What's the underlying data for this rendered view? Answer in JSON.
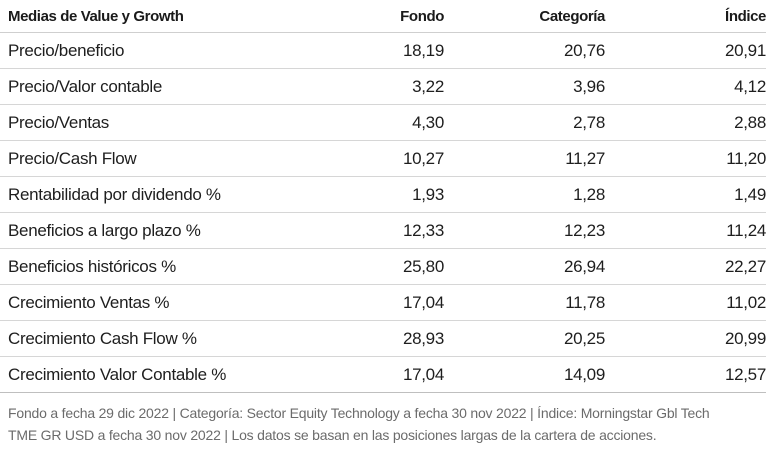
{
  "table": {
    "headers": {
      "label": "Medias de Value y Growth",
      "fondo": "Fondo",
      "categoria": "Categoría",
      "indice": "Índice"
    },
    "rows": [
      {
        "label": "Precio/beneficio",
        "fondo": "18,19",
        "categoria": "20,76",
        "indice": "20,91"
      },
      {
        "label": "Precio/Valor contable",
        "fondo": "3,22",
        "categoria": "3,96",
        "indice": "4,12"
      },
      {
        "label": "Precio/Ventas",
        "fondo": "4,30",
        "categoria": "2,78",
        "indice": "2,88"
      },
      {
        "label": "Precio/Cash Flow",
        "fondo": "10,27",
        "categoria": "11,27",
        "indice": "11,20"
      },
      {
        "label": "Rentabilidad por dividendo %",
        "fondo": "1,93",
        "categoria": "1,28",
        "indice": "1,49"
      },
      {
        "label": "Beneficios a largo plazo %",
        "fondo": "12,33",
        "categoria": "12,23",
        "indice": "11,24"
      },
      {
        "label": "Beneficios históricos %",
        "fondo": "25,80",
        "categoria": "26,94",
        "indice": "22,27"
      },
      {
        "label": "Crecimiento Ventas %",
        "fondo": "17,04",
        "categoria": "11,78",
        "indice": "11,02"
      },
      {
        "label": "Crecimiento Cash Flow %",
        "fondo": "28,93",
        "categoria": "20,25",
        "indice": "20,99"
      },
      {
        "label": "Crecimiento Valor Contable %",
        "fondo": "17,04",
        "categoria": "14,09",
        "indice": "12,57"
      }
    ]
  },
  "footnote": {
    "line1": "Fondo a fecha 29 dic 2022 | Categoría: Sector Equity Technology a fecha 30 nov 2022 | Índice: Morningstar Gbl Tech",
    "line2": "TME GR USD a fecha 30 nov 2022 | Los datos se basan en las posiciones largas de la cartera de acciones."
  }
}
